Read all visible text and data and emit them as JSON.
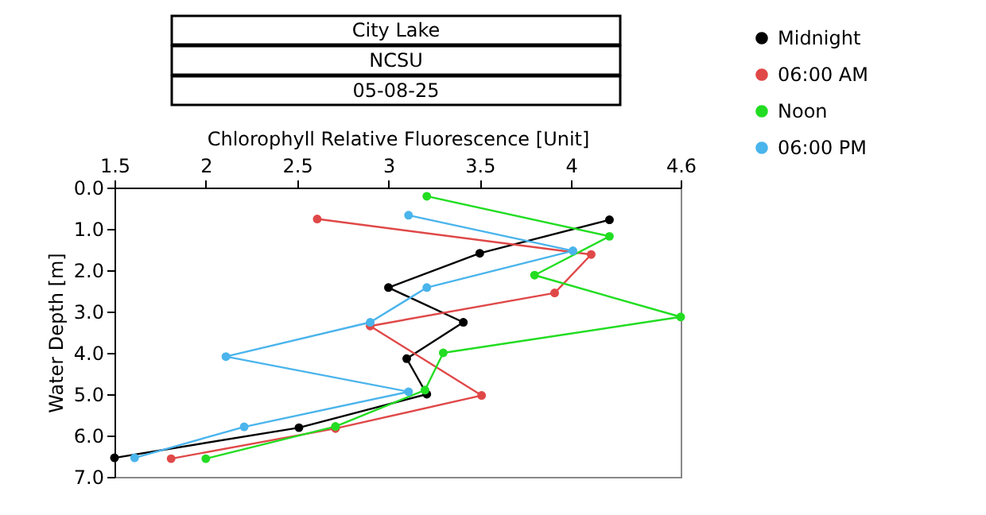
{
  "chart_data": {
    "type": "line",
    "title": "City Lake",
    "subtitle": "NCSU",
    "annotations": [
      "05-08-25"
    ],
    "xlabel": "Chlorophyll Relative Fluorescence [Unit]",
    "ylabel": "Water Depth [m]",
    "xlim": [
      1.5,
      4.6
    ],
    "xticks": [
      1.5,
      2,
      2.5,
      3,
      3.5,
      4,
      4.6
    ],
    "ylim": [
      7.0,
      0.0
    ],
    "yticks": [
      {
        "value": 0,
        "label": "0.0"
      },
      {
        "value": 1,
        "label": "1.0"
      },
      {
        "value": 2,
        "label": "2.0"
      },
      {
        "value": 3,
        "label": "3.0"
      },
      {
        "value": 4,
        "label": "4.0"
      },
      {
        "value": 5,
        "label": "5.0"
      },
      {
        "value": 6,
        "label": "6.0"
      },
      {
        "value": 7,
        "label": "7.0"
      }
    ],
    "grid": false,
    "legend": "top right",
    "marker": "circle",
    "line_style": "solid",
    "series": [
      {
        "name": "Midnight",
        "color": "#000000",
        "x": [
          4.21,
          3.5,
          3.0,
          3.41,
          3.1,
          3.21,
          2.51,
          1.5
        ],
        "values": [
          0.78,
          1.59,
          2.42,
          3.26,
          4.14,
          5.0,
          5.81,
          6.54
        ]
      },
      {
        "name": "06:00 AM",
        "color": "#e04848",
        "x": [
          2.61,
          4.11,
          3.91,
          2.9,
          null,
          3.51,
          2.71,
          1.81
        ],
        "values": [
          0.76,
          1.62,
          2.55,
          3.35,
          null,
          5.03,
          5.83,
          6.56
        ]
      },
      {
        "name": "Noon",
        "color": "#22dd22",
        "x": [
          3.21,
          4.21,
          3.8,
          4.6,
          3.3,
          3.2,
          2.71,
          2.0
        ],
        "values": [
          0.21,
          1.18,
          2.12,
          3.13,
          4.0,
          4.9,
          5.78,
          6.56
        ]
      },
      {
        "name": "06:00 PM",
        "color": "#4ab4ec",
        "x": [
          3.11,
          4.01,
          3.21,
          2.9,
          2.11,
          3.11,
          2.21,
          1.61
        ],
        "values": [
          0.67,
          1.53,
          2.42,
          3.26,
          4.09,
          4.94,
          5.79,
          6.54
        ]
      }
    ]
  }
}
